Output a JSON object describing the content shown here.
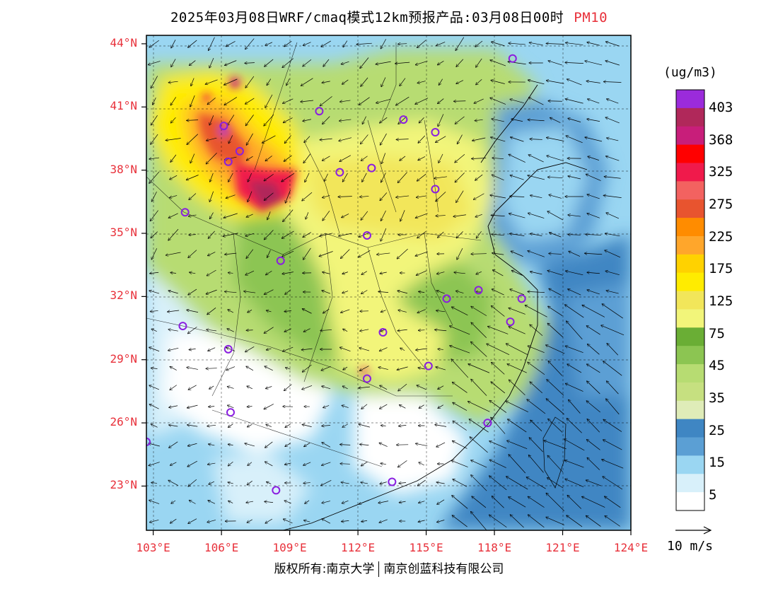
{
  "header": {
    "title": "2025年03月08日WRF/cmaq模式12km预报产品:03月08日00时",
    "species": "PM10"
  },
  "colors": {
    "axis_label": "#e8303a",
    "sea": "#2f7fc2"
  },
  "map": {
    "lat_ticks": [
      "44°N",
      "41°N",
      "38°N",
      "35°N",
      "32°N",
      "29°N",
      "26°N",
      "23°N"
    ],
    "lon_ticks": [
      "103°E",
      "106°E",
      "109°E",
      "112°E",
      "115°E",
      "118°E",
      "121°E",
      "124°E"
    ],
    "lat_values": [
      44,
      41,
      38,
      35,
      32,
      29,
      26,
      23
    ],
    "lon_values": [
      103,
      106,
      109,
      112,
      115,
      118,
      121,
      124
    ],
    "lat_range": [
      20.9,
      44.4
    ],
    "lon_range": [
      102.7,
      124
    ],
    "city_markers": [
      [
        118.8,
        43.3
      ],
      [
        110.3,
        40.8
      ],
      [
        114.0,
        40.4
      ],
      [
        115.4,
        39.8
      ],
      [
        106.3,
        38.4
      ],
      [
        111.2,
        37.9
      ],
      [
        112.6,
        38.1
      ],
      [
        115.4,
        37.1
      ],
      [
        104.4,
        36.0
      ],
      [
        112.4,
        34.9
      ],
      [
        108.6,
        33.7
      ],
      [
        115.9,
        31.9
      ],
      [
        117.3,
        32.3
      ],
      [
        119.2,
        31.9
      ],
      [
        118.7,
        30.8
      ],
      [
        104.3,
        30.6
      ],
      [
        113.1,
        30.3
      ],
      [
        106.3,
        29.5
      ],
      [
        115.1,
        28.7
      ],
      [
        112.4,
        28.1
      ],
      [
        117.7,
        26.0
      ],
      [
        106.4,
        26.5
      ],
      [
        102.7,
        25.1
      ],
      [
        108.4,
        22.8
      ],
      [
        113.5,
        23.2
      ],
      [
        106.1,
        40.1
      ],
      [
        106.8,
        38.9
      ]
    ]
  },
  "colorbar": {
    "unit": "(ug/m3)",
    "labels": [
      "403",
      "368",
      "325",
      "275",
      "225",
      "175",
      "125",
      "75",
      "45",
      "35",
      "25",
      "15",
      "5"
    ],
    "colors": [
      "#9b2bdb",
      "#b0285a",
      "#c81e7a",
      "#ff0000",
      "#f01a4b",
      "#f36260",
      "#e8542f",
      "#ff8c00",
      "#ffa62b",
      "#ffd200",
      "#ffec00",
      "#f2e65a",
      "#f2f57a",
      "#6aae35",
      "#8cc552",
      "#b7dc72",
      "#c6e080",
      "#dfecb8",
      "#3f86c3",
      "#5b9fd4",
      "#9ad6f2",
      "#d8f0fa",
      "#ffffff"
    ]
  },
  "wind_reference": {
    "label": "10 m/s"
  },
  "footer": {
    "copyright_left": "版权所有:南京大学",
    "copyright_right": "南京创蓝科技有限公司"
  }
}
